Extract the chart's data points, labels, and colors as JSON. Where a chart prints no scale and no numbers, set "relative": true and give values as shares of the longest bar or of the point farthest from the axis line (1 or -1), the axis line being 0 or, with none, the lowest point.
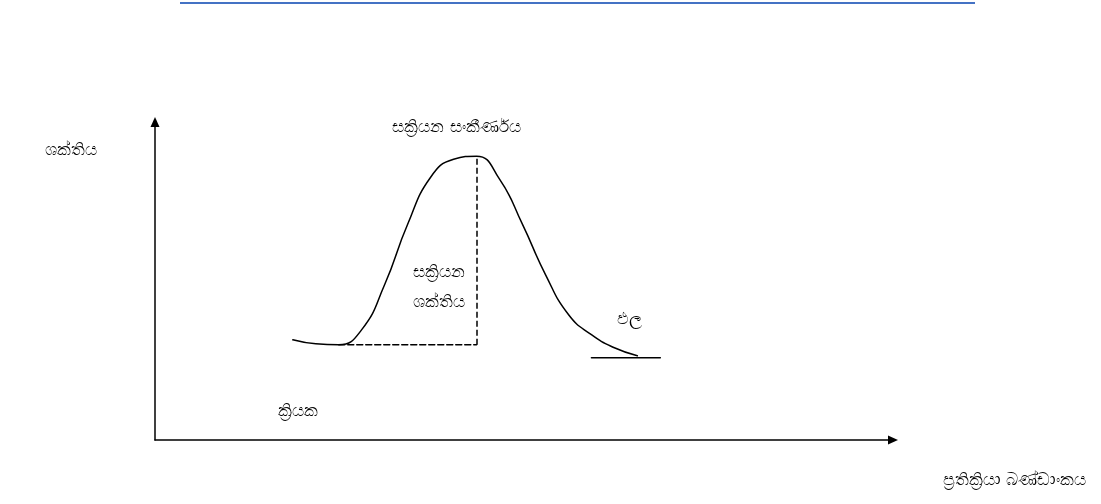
{
  "chart_data": {
    "type": "line",
    "relative": true,
    "xlabel": "ප්‍රතික්‍රියා බණ්ඩාංකය",
    "ylabel": "ශක්තිය",
    "categories": [
      null,
      null,
      null,
      null,
      null,
      null,
      null,
      null,
      null,
      null,
      null,
      null,
      null,
      null,
      null,
      null,
      null,
      null,
      null,
      null,
      null,
      null,
      null,
      null,
      null,
      null,
      null,
      null,
      null,
      null,
      null,
      null,
      null
    ],
    "series": [
      {
        "color": "#000000",
        "line_style": "solid",
        "values": [
          null,
          null,
          null,
          null,
          null,
          null,
          0.353,
          0.339,
          0.336,
          0.389,
          0.548,
          0.76,
          0.926,
          0.989,
          1,
          0.919,
          0.76,
          0.583,
          0.442,
          0.371,
          0.325,
          0.297,
          null,
          null,
          null,
          null,
          null,
          null,
          null,
          null,
          null,
          null,
          null
        ]
      },
      {
        "color": "#000000",
        "line_style": "dashed",
        "values": [
          null,
          null,
          null,
          null,
          null,
          null,
          null,
          null,
          0.336,
          0.336,
          0.336,
          0.336,
          0.336,
          0.336,
          0.336,
          null,
          null,
          null,
          null,
          null,
          null,
          null,
          null,
          null,
          null,
          null,
          null,
          null,
          null,
          null,
          null,
          null,
          null
        ]
      },
      {
        "color": "#000000",
        "line_style": "solid",
        "values": [
          null,
          null,
          null,
          null,
          null,
          null,
          null,
          null,
          null,
          null,
          null,
          null,
          null,
          null,
          null,
          null,
          null,
          null,
          null,
          0.29,
          0.29,
          0.29,
          0.29,
          null,
          null,
          null,
          null,
          null,
          null,
          null,
          null,
          null,
          null
        ]
      }
    ],
    "annotations": [
      "සක්‍රියන සංකීර්ණය",
      "සක්‍රියන\nශක්තිය",
      "ඵල",
      "ක්‍රියක"
    ],
    "grid": false,
    "marker": "none"
  }
}
